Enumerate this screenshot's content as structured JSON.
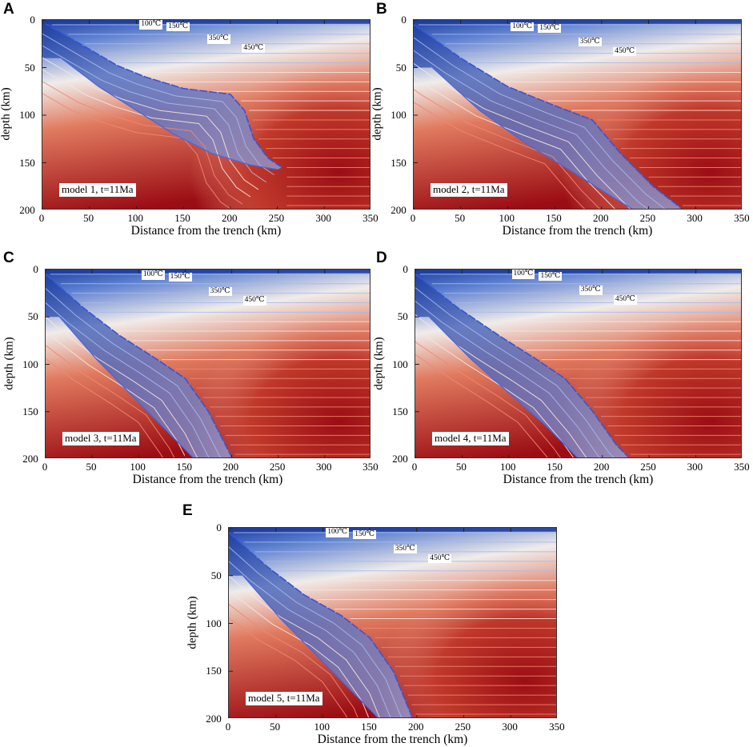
{
  "chart_data": [
    {
      "type": "heatmap",
      "panel_letter": "A",
      "title": "model 1, t=11Ma",
      "xlabel": "Distance from the trench (km)",
      "ylabel": "depth (km)",
      "xlim": [
        0,
        350
      ],
      "ylim": [
        0,
        200
      ],
      "xticks": [
        "0",
        "50",
        "100",
        "150",
        "200",
        "250",
        "300",
        "350"
      ],
      "yticks": [
        "0",
        "50",
        "100",
        "150",
        "200"
      ],
      "isotherm_labels": [
        "100℃",
        "150℃",
        "350℃",
        "450℃"
      ],
      "slab_path_km": [
        [
          0,
          2
        ],
        [
          40,
          25
        ],
        [
          80,
          48
        ],
        [
          110,
          60
        ],
        [
          150,
          72
        ],
        [
          200,
          78
        ],
        [
          215,
          95
        ],
        [
          225,
          125
        ],
        [
          240,
          145
        ],
        [
          255,
          155
        ]
      ],
      "slab_bottom_km": [
        [
          20,
          40
        ],
        [
          60,
          70
        ],
        [
          100,
          95
        ],
        [
          140,
          120
        ],
        [
          180,
          140
        ],
        [
          220,
          152
        ],
        [
          250,
          157
        ]
      ],
      "wedge_tip_km": [
        255,
        155
      ],
      "colorscale": [
        "#1e3d9e",
        "#f0ecea",
        "#9b0d14"
      ]
    },
    {
      "type": "heatmap",
      "panel_letter": "B",
      "title": "model 2, t=11Ma",
      "xlabel": "Distance from the trench (km)",
      "ylabel": "depth (km)",
      "xlim": [
        0,
        350
      ],
      "ylim": [
        0,
        200
      ],
      "xticks": [
        "0",
        "50",
        "100",
        "150",
        "200",
        "250",
        "300",
        "350"
      ],
      "yticks": [
        "0",
        "50",
        "100",
        "150",
        "200"
      ],
      "isotherm_labels": [
        "100℃",
        "150℃",
        "350℃",
        "450℃"
      ],
      "slab_path_km": [
        [
          0,
          5
        ],
        [
          50,
          40
        ],
        [
          100,
          70
        ],
        [
          150,
          90
        ],
        [
          190,
          105
        ],
        [
          220,
          140
        ],
        [
          255,
          175
        ],
        [
          285,
          198
        ]
      ],
      "slab_bottom_km": [
        [
          20,
          50
        ],
        [
          70,
          95
        ],
        [
          120,
          130
        ],
        [
          170,
          160
        ],
        [
          210,
          185
        ],
        [
          235,
          200
        ]
      ],
      "wedge_tip_km": [
        290,
        185
      ],
      "colorscale": [
        "#1e3d9e",
        "#f0ecea",
        "#9b0d14"
      ]
    },
    {
      "type": "heatmap",
      "panel_letter": "C",
      "title": "model 3, t=11Ma",
      "xlabel": "Distance from the trench (km)",
      "ylabel": "depth (km)",
      "xlim": [
        0,
        350
      ],
      "ylim": [
        0,
        200
      ],
      "xticks": [
        "0",
        "50",
        "100",
        "150",
        "200",
        "250",
        "300",
        "350"
      ],
      "yticks": [
        "0",
        "50",
        "100",
        "150",
        "200"
      ],
      "isotherm_labels": [
        "100℃",
        "150℃",
        "350℃",
        "450℃"
      ],
      "slab_path_km": [
        [
          0,
          5
        ],
        [
          40,
          40
        ],
        [
          80,
          70
        ],
        [
          120,
          95
        ],
        [
          150,
          115
        ],
        [
          175,
          150
        ],
        [
          200,
          198
        ]
      ],
      "slab_bottom_km": [
        [
          15,
          50
        ],
        [
          55,
          95
        ],
        [
          95,
          135
        ],
        [
          130,
          170
        ],
        [
          160,
          200
        ]
      ],
      "wedge_tip_km": [
        200,
        198
      ],
      "colorscale": [
        "#1e3d9e",
        "#f0ecea",
        "#9b0d14"
      ]
    },
    {
      "type": "heatmap",
      "panel_letter": "D",
      "title": "model 4, t=11Ma",
      "xlabel": "Distance from the trench (km)",
      "ylabel": "depth (km)",
      "xlim": [
        0,
        350
      ],
      "ylim": [
        0,
        200
      ],
      "xticks": [
        "0",
        "50",
        "100",
        "150",
        "200",
        "250",
        "300",
        "350"
      ],
      "yticks": [
        "0",
        "50",
        "100",
        "150",
        "200"
      ],
      "isotherm_labels": [
        "100℃",
        "150℃",
        "350℃",
        "450℃"
      ],
      "slab_path_km": [
        [
          0,
          5
        ],
        [
          45,
          40
        ],
        [
          90,
          70
        ],
        [
          130,
          95
        ],
        [
          160,
          115
        ],
        [
          190,
          150
        ],
        [
          215,
          185
        ],
        [
          228,
          198
        ]
      ],
      "slab_bottom_km": [
        [
          15,
          50
        ],
        [
          60,
          95
        ],
        [
          100,
          130
        ],
        [
          140,
          165
        ],
        [
          175,
          200
        ]
      ],
      "wedge_tip_km": [
        230,
        198
      ],
      "colorscale": [
        "#1e3d9e",
        "#f0ecea",
        "#9b0d14"
      ]
    },
    {
      "type": "heatmap",
      "panel_letter": "E",
      "title": "model 5, t=11Ma",
      "xlabel": "Distance from the trench (km)",
      "ylabel": "depth (km)",
      "xlim": [
        0,
        350
      ],
      "ylim": [
        0,
        200
      ],
      "xticks": [
        "0",
        "50",
        "100",
        "150",
        "200",
        "250",
        "300",
        "350"
      ],
      "yticks": [
        "0",
        "50",
        "100",
        "150",
        "200"
      ],
      "isotherm_labels": [
        "100℃",
        "150℃",
        "350℃",
        "450℃"
      ],
      "slab_path_km": [
        [
          0,
          5
        ],
        [
          40,
          40
        ],
        [
          80,
          70
        ],
        [
          120,
          92
        ],
        [
          150,
          115
        ],
        [
          175,
          150
        ],
        [
          195,
          198
        ]
      ],
      "slab_bottom_km": [
        [
          15,
          50
        ],
        [
          55,
          95
        ],
        [
          95,
          135
        ],
        [
          130,
          170
        ],
        [
          160,
          200
        ]
      ],
      "wedge_tip_km": [
        195,
        198
      ],
      "colorscale": [
        "#1e3d9e",
        "#f0ecea",
        "#9b0d14"
      ]
    }
  ]
}
